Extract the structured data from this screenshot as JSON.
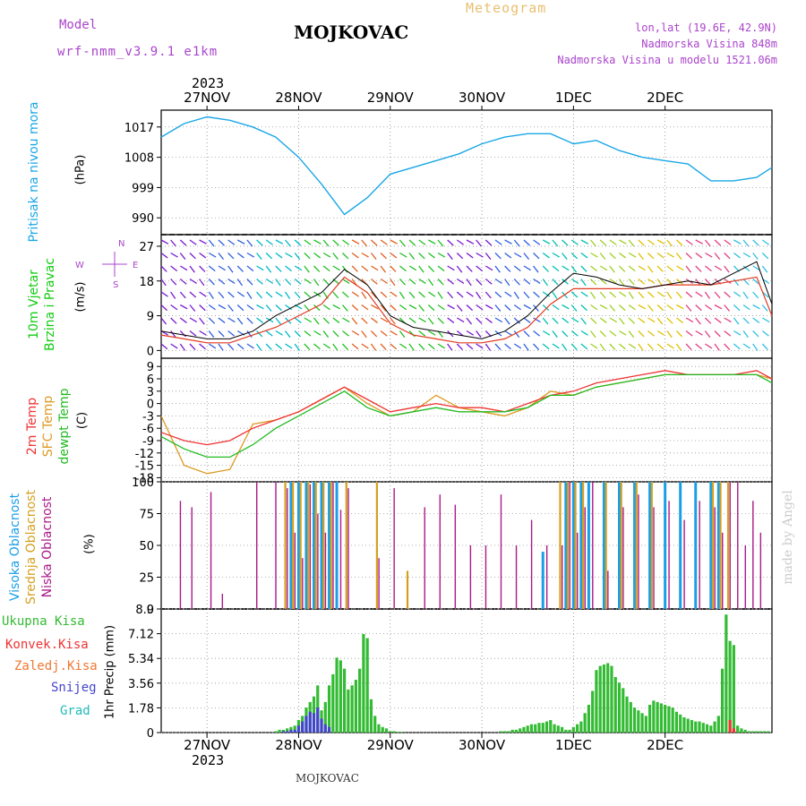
{
  "header": {
    "model_label": "Model",
    "model_name": "wrf-nmm_v3.9.1 e1km",
    "title": "MOJKOVAC",
    "subtitle": "Meteogram",
    "lonlat": "lon,lat (19.6E, 42.9N)",
    "altitude": "Nadmorska Visina 848m",
    "model_altitude": "Nadmorska Visina u modelu 1521.06m",
    "watermark": "made by Angel",
    "footer": "MOJKOVAC"
  },
  "colors": {
    "pressure": "#1aa7e6",
    "wind_label": "#11cc11",
    "temp2m": "#ee3333",
    "sfc": "#dd9922",
    "dewpt": "#22bb22",
    "high_cloud": "#1a9fe6",
    "mid_cloud": "#d4a020",
    "low_cloud": "#aa1a88",
    "total_rain": "#33bb33",
    "conv_rain": "#ee3333",
    "freezing": "#ee7733",
    "snow": "#4444cc",
    "hail": "#22bbbb",
    "model_text": "#aa44cc"
  },
  "time_axis": {
    "year": "2023",
    "day_labels": [
      "27NOV",
      "28NOV",
      "29NOV",
      "30NOV",
      "1DEC",
      "2DEC"
    ]
  },
  "wind_compass": {
    "n": "N",
    "s": "S",
    "e": "E",
    "w": "W"
  },
  "chart_data": [
    {
      "type": "line",
      "name": "pressure",
      "labels": [
        "Pritisak na nivou mora",
        "(hPa)"
      ],
      "ylim": [
        985,
        1022
      ],
      "yticks": [
        990,
        999,
        1008,
        1017
      ],
      "x": [
        0,
        6,
        12,
        18,
        24,
        30,
        36,
        42,
        48,
        54,
        60,
        66,
        72,
        78,
        84,
        90,
        96,
        102,
        108,
        114,
        120,
        126,
        132,
        138,
        144,
        150,
        156,
        160
      ],
      "values": [
        1014,
        1018,
        1020,
        1019,
        1017,
        1014,
        1008,
        1000,
        991,
        996,
        1003,
        1005,
        1007,
        1009,
        1012,
        1014,
        1015,
        1015,
        1012,
        1013,
        1010,
        1008,
        1007,
        1006,
        1001,
        1001,
        1002,
        1005
      ]
    },
    {
      "type": "line",
      "name": "wind",
      "labels": [
        "10m Vjetar",
        "Brzina i Pravac",
        "(m/s)"
      ],
      "ylim": [
        -2,
        30
      ],
      "yticks": [
        0,
        9,
        18,
        27
      ],
      "x": [
        0,
        6,
        12,
        18,
        24,
        30,
        36,
        42,
        48,
        54,
        60,
        66,
        72,
        78,
        84,
        90,
        96,
        102,
        108,
        114,
        120,
        126,
        132,
        138,
        144,
        150,
        156,
        160
      ],
      "series": [
        {
          "values": [
            5,
            4,
            3,
            3,
            5,
            9,
            12,
            15,
            21,
            17,
            9,
            6,
            5,
            4,
            3,
            5,
            9,
            15,
            20,
            19,
            17,
            16,
            17,
            18,
            17,
            20,
            23,
            12
          ]
        },
        {
          "values": [
            4,
            3,
            2,
            2,
            4,
            6,
            9,
            12,
            19,
            15,
            7,
            4,
            3,
            2,
            2,
            3,
            6,
            12,
            16,
            16,
            16,
            16,
            17,
            17,
            17,
            18,
            19,
            9
          ]
        }
      ]
    },
    {
      "type": "line",
      "name": "temperature",
      "labels": [
        "2m Temp",
        "SFC Temp",
        "dewpt Temp",
        "(C)"
      ],
      "ylim": [
        -19,
        11
      ],
      "yticks": [
        -18,
        -15,
        -12,
        -9,
        -6,
        -3,
        0,
        3,
        6,
        9
      ],
      "x": [
        0,
        6,
        12,
        18,
        24,
        30,
        36,
        42,
        48,
        54,
        60,
        66,
        72,
        78,
        84,
        90,
        96,
        102,
        108,
        114,
        120,
        126,
        132,
        138,
        144,
        150,
        156,
        160
      ],
      "series": [
        {
          "name": "2m Temp",
          "values": [
            -7,
            -9,
            -10,
            -9,
            -6,
            -4,
            -2,
            1,
            4,
            1,
            -2,
            -1,
            0,
            -1,
            -1,
            -2,
            0,
            2,
            3,
            5,
            6,
            7,
            8,
            7,
            7,
            7,
            8,
            6
          ]
        },
        {
          "name": "SFC Temp",
          "values": [
            -3,
            -15,
            -17,
            -16,
            -5,
            -4,
            -2,
            1,
            4,
            0,
            -3,
            -2,
            2,
            -1,
            -2,
            -3,
            -1,
            3,
            2,
            4,
            5,
            6,
            7,
            7,
            7,
            7,
            7,
            6
          ]
        },
        {
          "name": "dewpt Temp",
          "values": [
            -8,
            -11,
            -13,
            -13,
            -10,
            -6,
            -3,
            0,
            3,
            -1,
            -3,
            -2,
            -1,
            -2,
            -2,
            -2,
            -1,
            2,
            2,
            4,
            5,
            6,
            7,
            7,
            7,
            7,
            7,
            5
          ]
        }
      ]
    },
    {
      "type": "bar",
      "name": "clouds",
      "labels": [
        "Visoka Oblacnost",
        "Srednja Oblacnost",
        "Niska Oblacnost",
        "(%)"
      ],
      "ylim": [
        0,
        100
      ],
      "yticks": [
        0,
        25,
        50,
        75,
        100
      ],
      "x": [
        4,
        7,
        12,
        15,
        24,
        29,
        32,
        34,
        36,
        38,
        40,
        42,
        44,
        46,
        48,
        56,
        60,
        64,
        68,
        72,
        76,
        80,
        84,
        88,
        92,
        96,
        100,
        104,
        106,
        108,
        110,
        112,
        116,
        120,
        124,
        128,
        132,
        136,
        140,
        144,
        146,
        148,
        150,
        152,
        154,
        156
      ],
      "series": [
        {
          "name": "Visoka Oblacnost",
          "values": [
            0,
            0,
            0,
            0,
            0,
            0,
            0,
            100,
            100,
            100,
            100,
            100,
            100,
            100,
            0,
            0,
            0,
            0,
            0,
            0,
            0,
            0,
            0,
            0,
            0,
            0,
            45,
            0,
            100,
            100,
            100,
            100,
            100,
            100,
            100,
            100,
            100,
            100,
            100,
            100,
            100,
            0,
            0,
            0,
            0,
            0
          ]
        },
        {
          "name": "Srednja Oblacnost",
          "values": [
            0,
            0,
            0,
            0,
            0,
            0,
            100,
            100,
            100,
            100,
            100,
            100,
            100,
            0,
            100,
            100,
            0,
            30,
            0,
            0,
            0,
            0,
            0,
            0,
            0,
            0,
            0,
            100,
            100,
            100,
            100,
            0,
            100,
            100,
            100,
            100,
            0,
            0,
            0,
            100,
            100,
            100,
            0,
            0,
            0,
            0
          ]
        },
        {
          "name": "Niska Oblacnost",
          "values": [
            85,
            80,
            92,
            12,
            100,
            100,
            95,
            60,
            40,
            98,
            75,
            60,
            100,
            78,
            95,
            40,
            95,
            0,
            80,
            90,
            82,
            50,
            50,
            90,
            50,
            70,
            50,
            50,
            100,
            60,
            80,
            100,
            30,
            80,
            90,
            80,
            85,
            70,
            85,
            80,
            60,
            100,
            100,
            50,
            85,
            60
          ]
        }
      ]
    },
    {
      "type": "bar",
      "name": "precipitation",
      "labels": [
        "Ukupna Kisa",
        "Konvek.Kisa",
        "Zaledj.Kisa",
        "Snijeg",
        "Grad",
        "1hr Precip (mm)"
      ],
      "ylim": [
        0,
        8.9
      ],
      "yticks": [
        0,
        1.78,
        3.56,
        5.34,
        7.12,
        8.9
      ],
      "x": [
        30,
        31,
        32,
        33,
        34,
        35,
        36,
        37,
        38,
        39,
        40,
        41,
        42,
        43,
        44,
        45,
        46,
        47,
        48,
        49,
        50,
        51,
        52,
        53,
        54,
        55,
        56,
        57,
        58,
        59,
        60,
        61,
        62,
        63,
        64,
        65,
        66,
        67,
        68,
        69,
        70,
        71,
        72,
        73,
        74,
        75,
        76,
        77,
        78,
        79,
        80,
        81,
        82,
        83,
        84,
        85,
        86,
        87,
        88,
        89,
        90,
        91,
        92,
        93,
        94,
        95,
        96,
        97,
        98,
        99,
        100,
        101,
        102,
        103,
        104,
        105,
        106,
        107,
        108,
        109,
        110,
        111,
        112,
        113,
        114,
        115,
        116,
        117,
        118,
        119,
        120,
        121,
        122,
        123,
        124,
        125,
        126,
        127,
        128,
        129,
        130,
        131,
        132,
        133,
        134,
        135,
        136,
        137,
        138,
        139,
        140,
        141,
        142,
        143,
        144,
        145,
        146,
        147,
        148,
        149,
        150,
        151,
        152,
        153,
        154,
        155,
        156,
        157,
        158,
        159
      ],
      "series": [
        {
          "name": "Ukupna Kisa",
          "values": [
            0.1,
            0.2,
            0.2,
            0.3,
            0.4,
            0.5,
            0.9,
            1.2,
            1.8,
            2.2,
            2.6,
            3.4,
            1.6,
            2.2,
            3.4,
            4.2,
            5.4,
            5.2,
            4.6,
            3.1,
            3.4,
            3.8,
            4.6,
            7.1,
            6.8,
            2.4,
            1.2,
            0.6,
            0.4,
            0.3,
            0.1,
            0.1,
            0.05,
            0.05,
            0,
            0,
            0,
            0,
            0,
            0,
            0,
            0,
            0,
            0,
            0,
            0,
            0,
            0,
            0,
            0,
            0,
            0,
            0,
            0,
            0,
            0,
            0,
            0,
            0,
            0.1,
            0.1,
            0.1,
            0.2,
            0.2,
            0.3,
            0.4,
            0.5,
            0.6,
            0.6,
            0.7,
            0.7,
            0.8,
            0.9,
            0.6,
            0.5,
            0.4,
            0.2,
            0.2,
            0.4,
            0.6,
            0.8,
            1.4,
            2.0,
            3.0,
            4.5,
            4.8,
            4.9,
            5.0,
            4.8,
            4.0,
            3.6,
            3.2,
            2.6,
            2.2,
            1.8,
            1.6,
            1.4,
            1.2,
            2.0,
            2.3,
            2.2,
            2.1,
            2.0,
            1.9,
            1.8,
            1.5,
            1.3,
            1.1,
            1.0,
            0.9,
            0.8,
            0.8,
            0.7,
            0.6,
            0.5,
            0.8,
            1.2,
            4.6,
            8.5,
            6.6,
            6.3,
            0.5,
            0.3,
            0.2,
            0.1,
            0.1,
            0.1,
            0.1,
            0.1,
            0.1
          ]
        },
        {
          "name": "Snijeg",
          "values": [
            0,
            0,
            0.1,
            0.1,
            0.2,
            0.2,
            0.5,
            0.8,
            1.2,
            1.5,
            1.4,
            1.8,
            1.0,
            0.6,
            0.4,
            0,
            0,
            0,
            0,
            0,
            0,
            0,
            0,
            0,
            0,
            0,
            0,
            0,
            0,
            0,
            0,
            0,
            0,
            0,
            0,
            0,
            0,
            0,
            0,
            0,
            0,
            0,
            0,
            0,
            0,
            0,
            0,
            0,
            0,
            0,
            0,
            0,
            0,
            0,
            0,
            0,
            0,
            0,
            0,
            0,
            0,
            0,
            0,
            0,
            0,
            0,
            0,
            0,
            0,
            0,
            0,
            0,
            0,
            0,
            0,
            0,
            0,
            0,
            0,
            0,
            0,
            0,
            0,
            0,
            0,
            0,
            0,
            0,
            0,
            0,
            0,
            0,
            0,
            0,
            0,
            0,
            0,
            0,
            0,
            0,
            0,
            0,
            0,
            0,
            0,
            0,
            0,
            0,
            0,
            0,
            0,
            0,
            0,
            0,
            0,
            0,
            0,
            0,
            0,
            0,
            0,
            0,
            0,
            0,
            0,
            0,
            0,
            0,
            0,
            0
          ]
        },
        {
          "name": "Konvek.Kisa",
          "values": [
            0,
            0,
            0,
            0,
            0,
            0,
            0,
            0,
            0,
            0,
            0,
            0,
            0,
            0,
            0,
            0,
            0,
            0,
            0,
            0,
            0,
            0,
            0,
            0,
            0,
            0,
            0,
            0,
            0,
            0,
            0,
            0,
            0,
            0,
            0,
            0,
            0,
            0,
            0,
            0,
            0,
            0,
            0,
            0,
            0,
            0,
            0,
            0,
            0,
            0,
            0,
            0,
            0,
            0,
            0,
            0,
            0,
            0,
            0,
            0,
            0,
            0,
            0,
            0,
            0,
            0,
            0,
            0,
            0,
            0,
            0,
            0,
            0,
            0,
            0,
            0,
            0,
            0,
            0,
            0,
            0,
            0,
            0,
            0,
            0,
            0,
            0,
            0,
            0,
            0,
            0,
            0,
            0,
            0,
            0,
            0,
            0,
            0,
            0,
            0,
            0,
            0,
            0,
            0,
            0,
            0,
            0,
            0,
            0,
            0,
            0,
            0,
            0,
            0,
            0,
            0,
            0,
            0,
            0,
            0.9,
            0.3,
            0,
            0,
            0,
            0,
            0,
            0,
            0,
            0,
            0
          ]
        }
      ]
    }
  ]
}
